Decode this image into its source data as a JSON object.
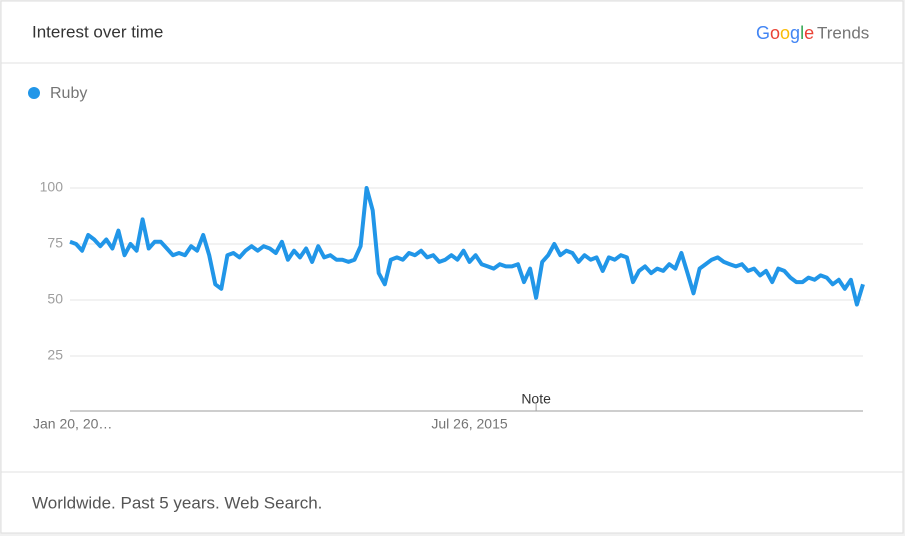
{
  "header": {
    "title": "Interest over time",
    "brand": "Google",
    "product": "Trends"
  },
  "chart_data": {
    "type": "line",
    "categories": [
      "Jan 20, 20…",
      null,
      null,
      null,
      null,
      null,
      null,
      null,
      null,
      null,
      null,
      null,
      null,
      null,
      null,
      null,
      null,
      null,
      null,
      null,
      null,
      null,
      null,
      null,
      null,
      null,
      null,
      null,
      null,
      null,
      null,
      null,
      null,
      null,
      null,
      null,
      null,
      null,
      null,
      null,
      null,
      null,
      null,
      null,
      null,
      null,
      null,
      null,
      null,
      null,
      null,
      null,
      null,
      null,
      null,
      null,
      null,
      null,
      null,
      null,
      null,
      null,
      null,
      null,
      null,
      null,
      "Jul 26, 2015",
      null,
      null,
      null,
      null,
      null,
      null,
      null,
      null,
      null,
      null,
      null,
      null,
      null,
      null,
      null,
      null,
      null,
      null,
      null,
      null,
      null,
      null,
      null,
      null,
      null,
      null,
      null,
      null,
      null,
      null,
      null,
      null,
      null,
      null,
      null,
      null,
      null,
      null,
      null,
      null,
      null,
      null,
      null,
      null,
      null,
      null,
      null,
      null,
      null,
      null,
      null,
      null,
      null,
      null,
      null,
      null,
      null,
      null,
      null,
      null,
      null,
      null,
      null,
      null,
      null
    ],
    "series": [
      {
        "name": "Ruby",
        "color": "#2196e8",
        "values": [
          76,
          75,
          72,
          79,
          77,
          74,
          77,
          73,
          81,
          70,
          75,
          72,
          86,
          73,
          76,
          76,
          73,
          70,
          71,
          70,
          74,
          72,
          79,
          70,
          57,
          55,
          70,
          71,
          69,
          72,
          74,
          72,
          74,
          73,
          71,
          76,
          68,
          72,
          69,
          73,
          67,
          74,
          69,
          70,
          68,
          68,
          67,
          68,
          74,
          100,
          90,
          62,
          57,
          68,
          69,
          68,
          71,
          70,
          72,
          69,
          70,
          67,
          68,
          70,
          68,
          72,
          67,
          70,
          66,
          65,
          64,
          66,
          65,
          65,
          66,
          58,
          64,
          51,
          67,
          70,
          75,
          70,
          72,
          71,
          67,
          70,
          68,
          69,
          63,
          69,
          68,
          70,
          69,
          58,
          63,
          65,
          62,
          64,
          63,
          66,
          64,
          71,
          62,
          53,
          64,
          66,
          68,
          69,
          67,
          66,
          65,
          66,
          63,
          64,
          61,
          63,
          58,
          64,
          63,
          60,
          58,
          58,
          60,
          59,
          61,
          60,
          57,
          59,
          55,
          59,
          48,
          57
        ]
      }
    ],
    "ylim": [
      0,
      100
    ],
    "yticks": [
      25,
      50,
      75,
      100
    ],
    "grid": true,
    "annotations": [
      {
        "text": "Note",
        "index": 77
      }
    ]
  },
  "footer": {
    "text": "Worldwide. Past 5 years. Web Search."
  }
}
